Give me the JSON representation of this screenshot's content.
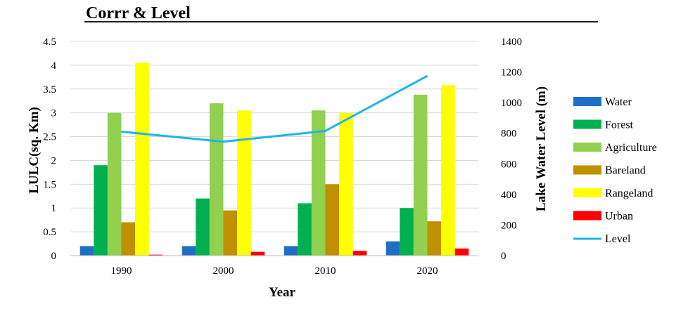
{
  "chart_data": {
    "type": "bar",
    "title": "Corrr & Level",
    "xlabel": "Year",
    "ylabel": "LULC(sq. Km)",
    "y2label": "Lake Water Level (m)",
    "categories": [
      "1990",
      "2000",
      "2010",
      "2020"
    ],
    "ylim": [
      0,
      4.5
    ],
    "y2lim": [
      0,
      1400
    ],
    "yticks": [
      "0",
      "0.5",
      "1",
      "1.5",
      "2",
      "2.5",
      "3",
      "3.5",
      "4",
      "4.5"
    ],
    "y2ticks": [
      "0",
      "200",
      "400",
      "600",
      "800",
      "1000",
      "1200",
      "1400"
    ],
    "grid": "horizontal",
    "legend_position": "right",
    "series": [
      {
        "name": "Water",
        "type": "bar",
        "axis": "left",
        "color": "#1f6fc5",
        "values": [
          0.2,
          0.2,
          0.2,
          0.3
        ]
      },
      {
        "name": "Forest",
        "type": "bar",
        "axis": "left",
        "color": "#00b050",
        "values": [
          1.9,
          1.2,
          1.1,
          1.0
        ]
      },
      {
        "name": "Agriculture",
        "type": "bar",
        "axis": "left",
        "color": "#92d050",
        "values": [
          3.0,
          3.2,
          3.05,
          3.38
        ]
      },
      {
        "name": "Bareland",
        "type": "bar",
        "axis": "left",
        "color": "#bf9000",
        "values": [
          0.7,
          0.95,
          1.5,
          0.72
        ]
      },
      {
        "name": "Rangeland",
        "type": "bar",
        "axis": "left",
        "color": "#ffff00",
        "values": [
          4.05,
          3.05,
          3.0,
          3.58
        ]
      },
      {
        "name": "Urban",
        "type": "bar",
        "axis": "left",
        "color": "#ff0000",
        "values": [
          0.02,
          0.08,
          0.1,
          0.15
        ]
      },
      {
        "name": "Level",
        "type": "line",
        "axis": "right",
        "color": "#1fb4e8",
        "values": [
          810,
          745,
          815,
          1175
        ]
      }
    ]
  }
}
